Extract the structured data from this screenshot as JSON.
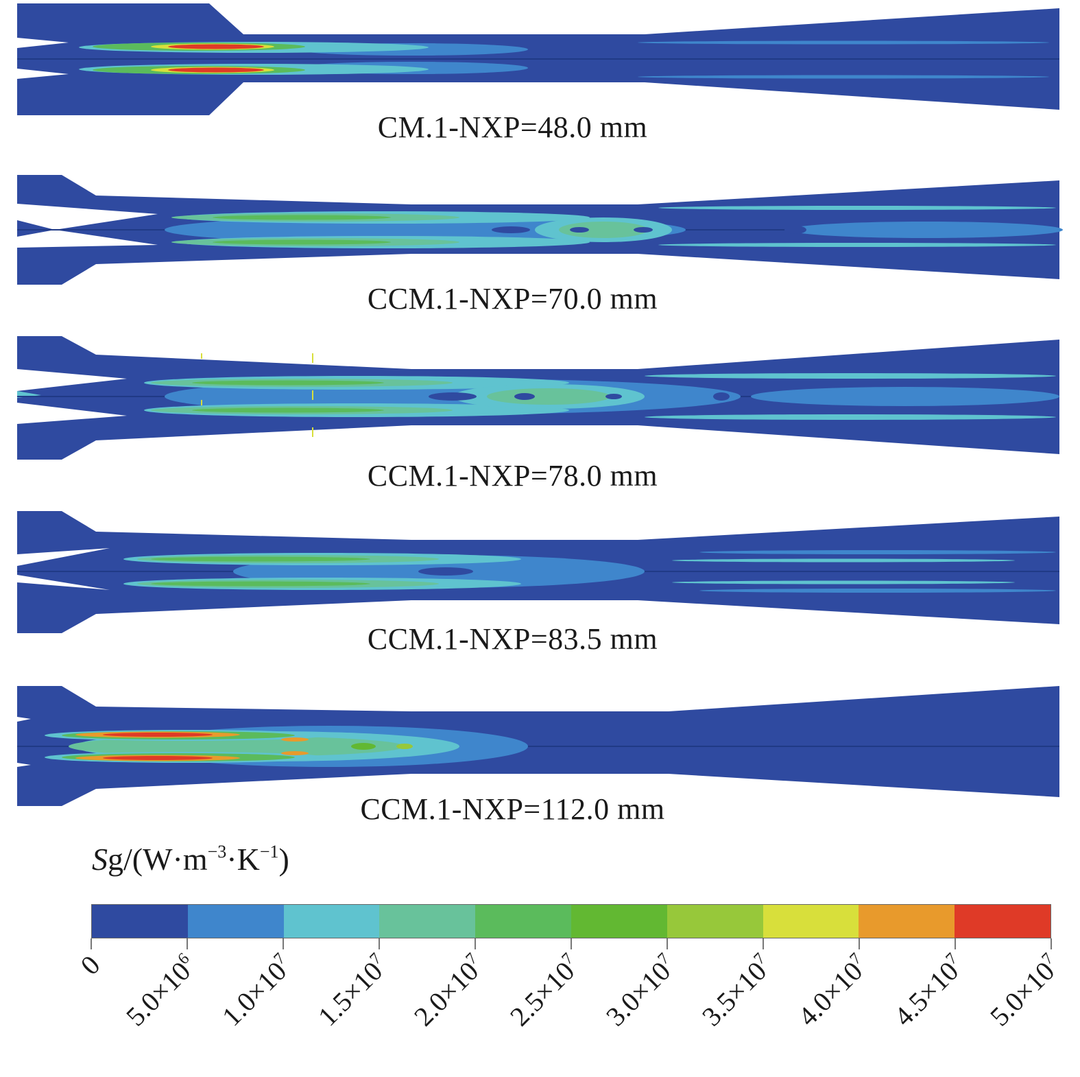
{
  "panels": [
    {
      "caption": "CM.1-NXP=48.0 mm"
    },
    {
      "caption": "CCM.1-NXP=70.0 mm"
    },
    {
      "caption": "CCM.1-NXP=78.0 mm"
    },
    {
      "caption": "CCM.1-NXP=83.5 mm"
    },
    {
      "caption": "CCM.1-NXP=112.0 mm"
    }
  ],
  "legend": {
    "symbol": "S",
    "symbol_sub": "g",
    "unit_text": "/(W·m",
    "exp1": "−3",
    "unit_mid": "·K",
    "exp2": "−1",
    "unit_end": ")",
    "colors": [
      "#2f4aa0",
      "#3f86cc",
      "#5fc3cf",
      "#68c29b",
      "#5bbb5c",
      "#62b832",
      "#97c83a",
      "#d8df3b",
      "#e89a2c",
      "#df3a27"
    ],
    "ticks": [
      {
        "m": "0",
        "e": ""
      },
      {
        "m": "5.0×10",
        "e": "6"
      },
      {
        "m": "1.0×10",
        "e": "7"
      },
      {
        "m": "1.5×10",
        "e": "7"
      },
      {
        "m": "2.0×10",
        "e": "7"
      },
      {
        "m": "2.5×10",
        "e": "7"
      },
      {
        "m": "3.0×10",
        "e": "7"
      },
      {
        "m": "3.5×10",
        "e": "7"
      },
      {
        "m": "4.0×10",
        "e": "7"
      },
      {
        "m": "4.5×10",
        "e": "7"
      },
      {
        "m": "5.0×10",
        "e": "7"
      }
    ]
  }
}
